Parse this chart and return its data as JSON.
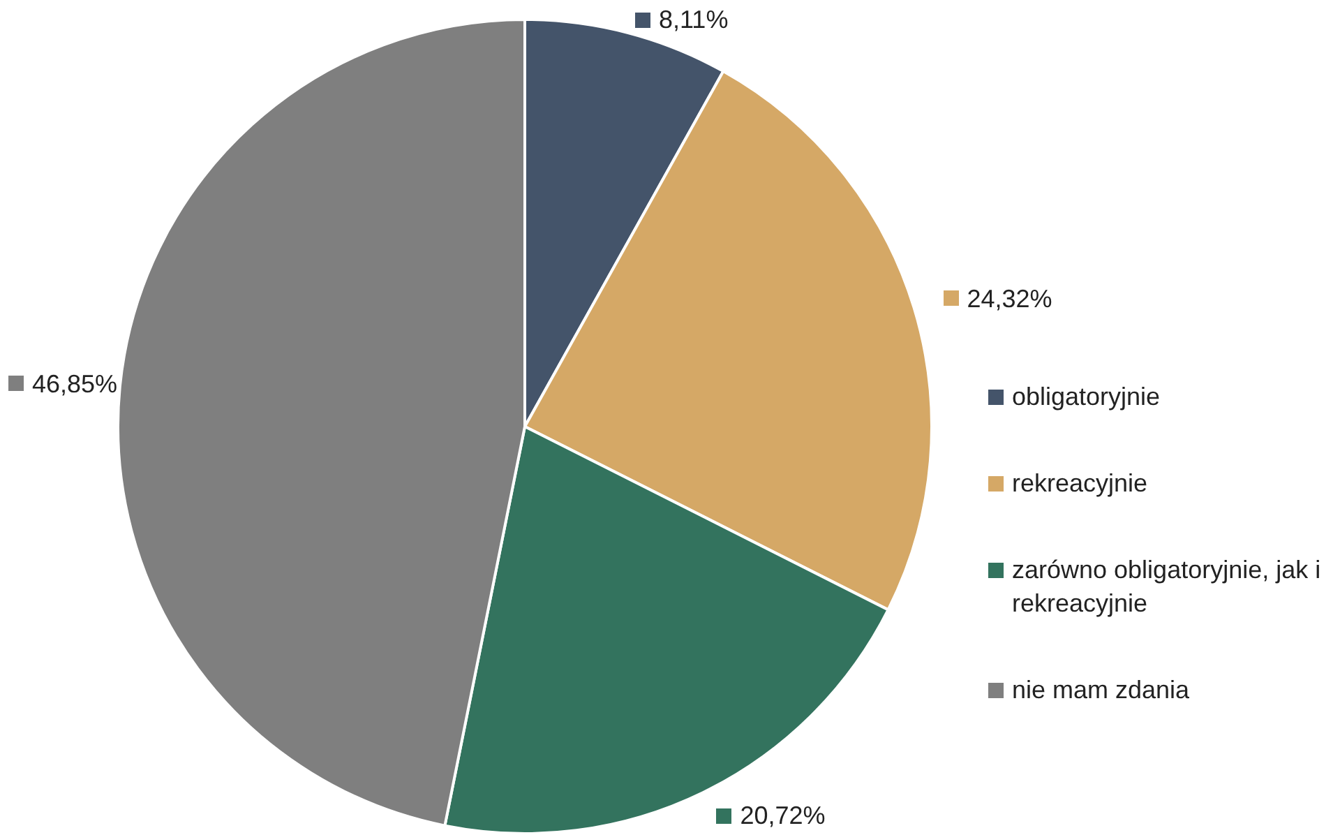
{
  "chart_data": {
    "type": "pie",
    "categories": [
      "obligatoryjnie",
      "rekreacyjnie",
      "zarówno obligatoryjnie, jak i rekreacyjnie",
      "nie mam zdania"
    ],
    "values": [
      8.11,
      24.32,
      20.72,
      46.85
    ],
    "value_labels": [
      "8,11%",
      "24,32%",
      "20,72%",
      "46,85%"
    ],
    "colors": [
      "#44546a",
      "#d5a866",
      "#33735e",
      "#7f7f7f"
    ],
    "legend": "right"
  }
}
